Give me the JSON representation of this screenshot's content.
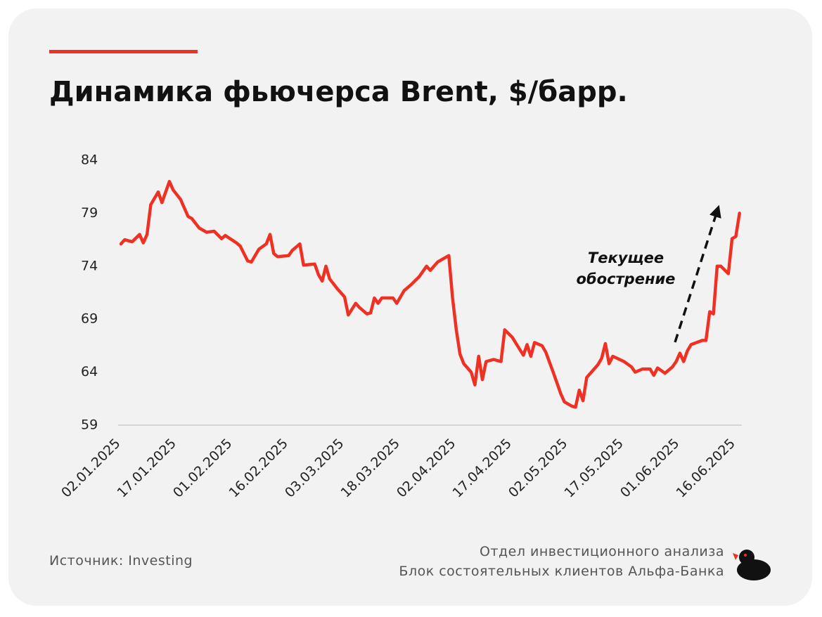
{
  "chart_data": {
    "type": "line",
    "title": "Динамика фьючерса Brent, $/барр.",
    "annotation": [
      "Текущее",
      "обострение"
    ],
    "source": "Источник: Investing",
    "credits": [
      "Отдел инвестиционного анализа",
      "Блок состоятельных клиентов Альфа-Банка"
    ],
    "color": "#ef3124",
    "ylim": [
      59,
      84
    ],
    "yticks": [
      59,
      64,
      69,
      74,
      79,
      84
    ],
    "xlim": [
      "02.01.2025",
      "18.06.2025"
    ],
    "xticks": [
      "02.01.2025",
      "17.01.2025",
      "01.02.2025",
      "16.02.2025",
      "03.03.2025",
      "18.03.2025",
      "02.04.2025",
      "17.04.2025",
      "02.05.2025",
      "17.05.2025",
      "01.06.2025",
      "16.06.2025"
    ],
    "x": [
      "02.01.2025",
      "03.01.2025",
      "05.01.2025",
      "07.01.2025",
      "08.01.2025",
      "09.01.2025",
      "10.01.2025",
      "12.01.2025",
      "13.01.2025",
      "15.01.2025",
      "16.01.2025",
      "18.01.2025",
      "20.01.2025",
      "21.01.2025",
      "23.01.2025",
      "25.01.2025",
      "27.01.2025",
      "29.01.2025",
      "30.01.2025",
      "02.02.2025",
      "03.02.2025",
      "05.02.2025",
      "06.02.2025",
      "08.02.2025",
      "10.02.2025",
      "11.02.2025",
      "12.02.2025",
      "13.02.2025",
      "16.02.2025",
      "17.02.2025",
      "19.02.2025",
      "20.02.2025",
      "23.02.2025",
      "24.02.2025",
      "25.02.2025",
      "26.02.2025",
      "27.02.2025",
      "01.03.2025",
      "03.03.2025",
      "04.03.2025",
      "06.03.2025",
      "07.03.2025",
      "09.03.2025",
      "10.03.2025",
      "11.03.2025",
      "12.03.2025",
      "13.03.2025",
      "16.03.2025",
      "17.03.2025",
      "19.03.2025",
      "21.03.2025",
      "23.03.2025",
      "25.03.2025",
      "26.03.2025",
      "28.03.2025",
      "30.03.2025",
      "31.03.2025",
      "01.04.2025",
      "02.04.2025",
      "03.04.2025",
      "04.04.2025",
      "06.04.2025",
      "07.04.2025",
      "08.04.2025",
      "09.04.2025",
      "10.04.2025",
      "12.04.2025",
      "14.04.2025",
      "15.04.2025",
      "17.04.2025",
      "20.04.2025",
      "21.04.2025",
      "22.04.2025",
      "23.04.2025",
      "25.04.2025",
      "26.04.2025",
      "28.04.2025",
      "30.04.2025",
      "01.05.2025",
      "03.05.2025",
      "04.05.2025",
      "05.05.2025",
      "06.05.2025",
      "07.05.2025",
      "10.05.2025",
      "11.05.2025",
      "12.05.2025",
      "13.05.2025",
      "14.05.2025",
      "17.05.2025",
      "19.05.2025",
      "20.05.2025",
      "22.05.2025",
      "24.05.2025",
      "25.05.2025",
      "26.05.2025",
      "28.05.2025",
      "30.05.2025",
      "31.05.2025",
      "01.06.2025",
      "02.06.2025",
      "03.06.2025",
      "04.06.2025",
      "07.06.2025",
      "08.06.2025",
      "09.06.2025",
      "10.06.2025",
      "11.06.2025",
      "12.06.2025",
      "14.06.2025",
      "15.06.2025",
      "16.06.2025",
      "17.06.2025"
    ],
    "values": [
      76.1,
      76.5,
      76.3,
      77.0,
      76.2,
      77.0,
      79.8,
      81.0,
      80.0,
      82.0,
      81.2,
      80.3,
      78.7,
      78.5,
      77.6,
      77.2,
      77.3,
      76.6,
      76.9,
      76.2,
      75.9,
      74.5,
      74.4,
      75.6,
      76.1,
      77.0,
      75.2,
      74.9,
      75.0,
      75.5,
      76.1,
      74.1,
      74.2,
      73.2,
      72.6,
      74.0,
      72.8,
      71.9,
      71.1,
      69.4,
      70.5,
      70.1,
      69.5,
      69.6,
      71.0,
      70.5,
      71.0,
      71.0,
      70.5,
      71.7,
      72.3,
      73.0,
      74.0,
      73.6,
      74.4,
      74.8,
      75.0,
      71.0,
      68.0,
      65.7,
      64.8,
      64.0,
      62.8,
      65.5,
      63.3,
      65.0,
      65.2,
      65.0,
      68.0,
      67.3,
      65.6,
      66.6,
      65.5,
      66.8,
      66.5,
      65.9,
      64.0,
      62.0,
      61.2,
      60.8,
      60.7,
      62.3,
      61.3,
      63.5,
      64.7,
      65.3,
      66.7,
      64.8,
      65.5,
      65.0,
      64.5,
      64.0,
      64.3,
      64.3,
      63.7,
      64.4,
      63.9,
      64.5,
      65.0,
      65.8,
      65.0,
      66.0,
      66.6,
      67.0,
      67.0,
      69.7,
      69.5,
      74.0,
      74.0,
      73.3,
      76.6,
      76.8,
      79.0
    ]
  }
}
